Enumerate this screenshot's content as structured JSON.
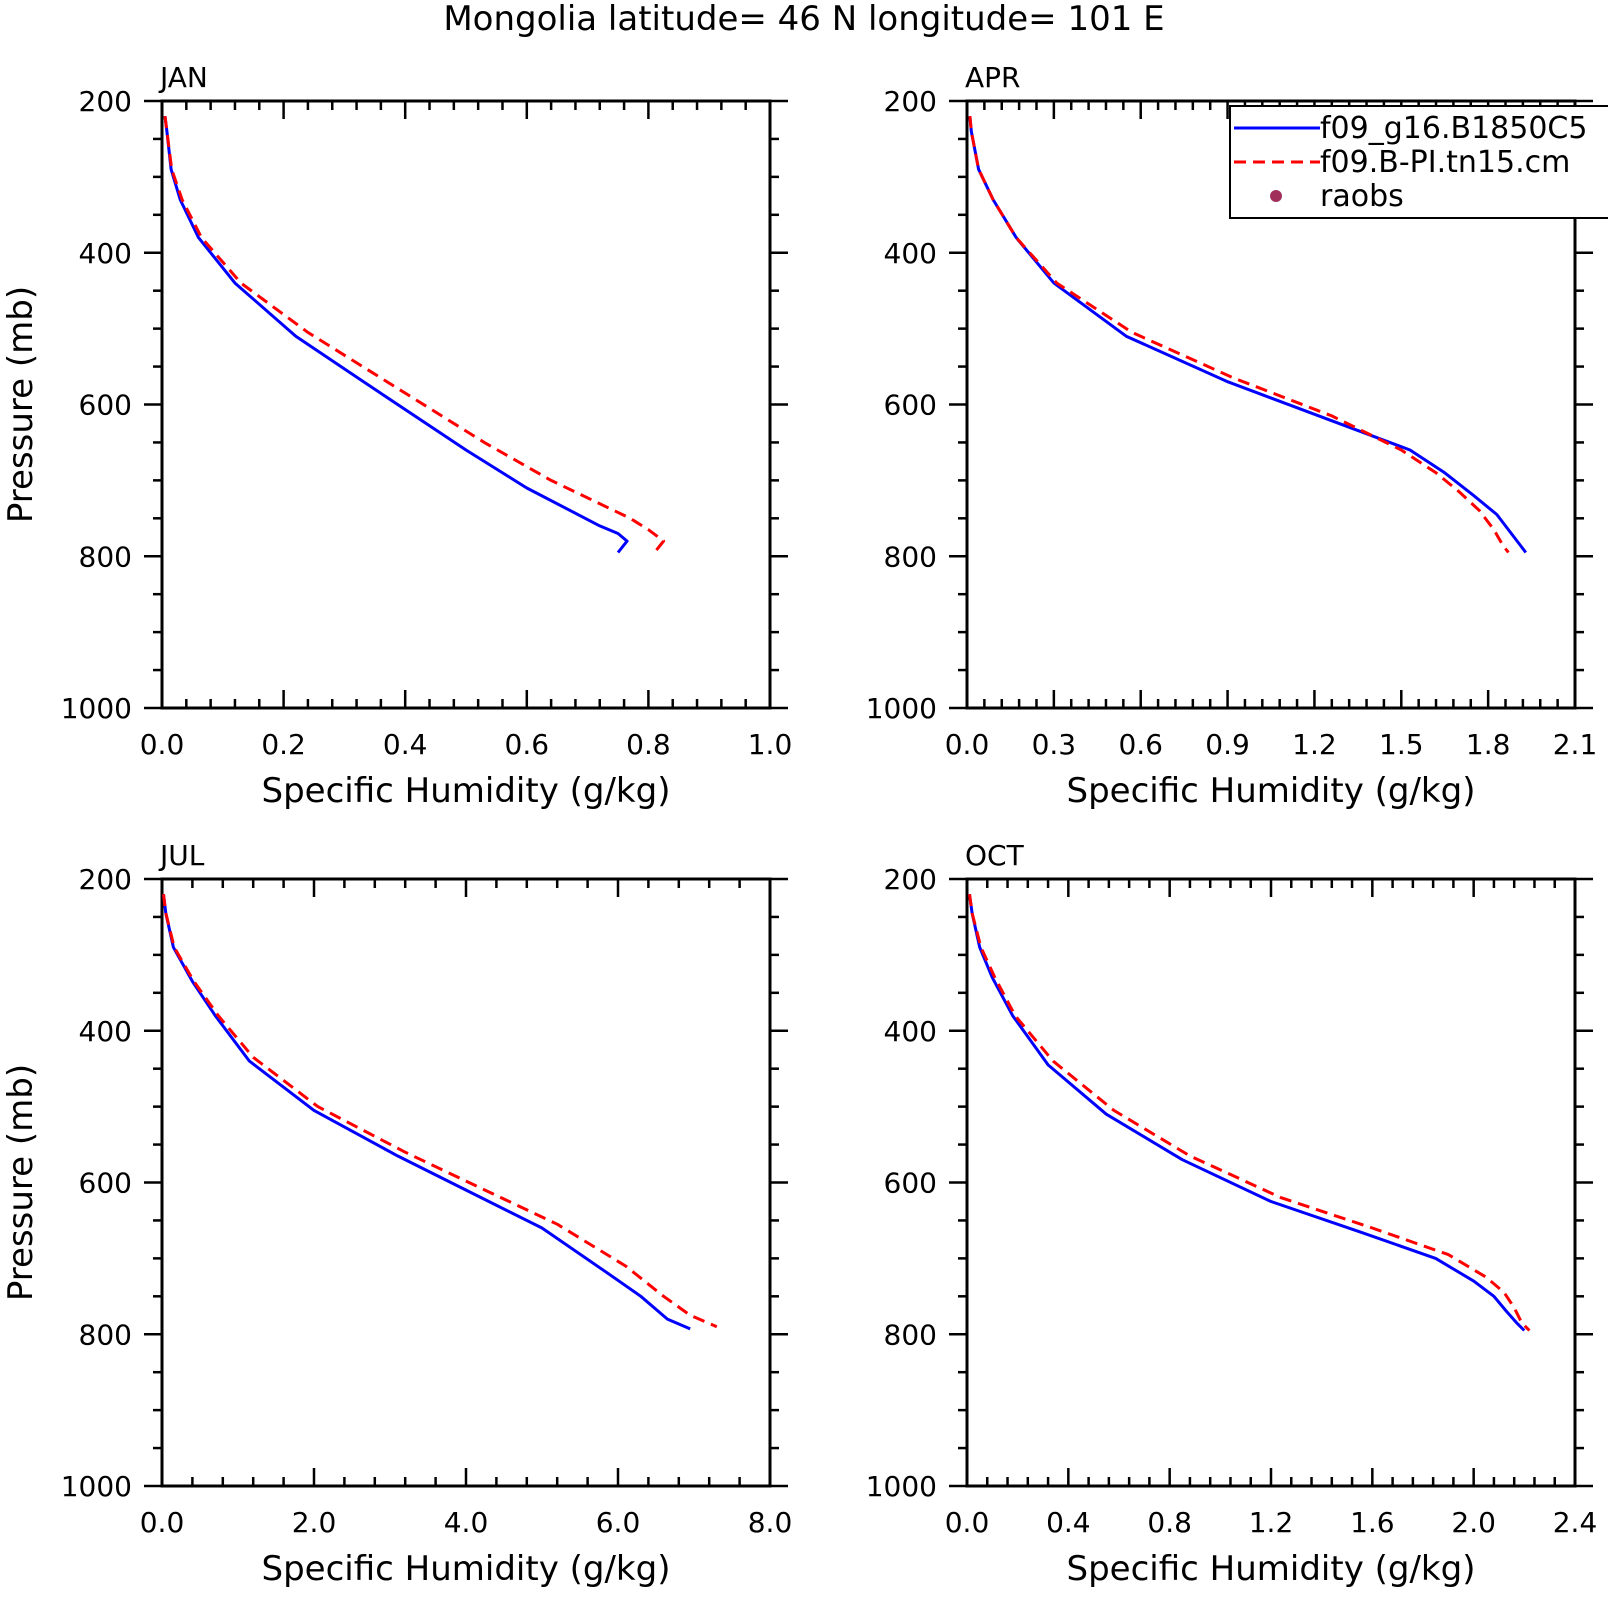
{
  "figure": {
    "title": "Mongolia  latitude= 46 N longitude= 101 E"
  },
  "legend": {
    "placement": "top-right of APR panel",
    "entries": [
      {
        "label": "f09_g16.B1850C5",
        "style": "solid",
        "color": "#0000ff"
      },
      {
        "label": "f09.B-PI.tn15.cm",
        "style": "dashed",
        "color": "#ff0000"
      },
      {
        "label": "raobs",
        "style": "dot",
        "color": "#a0305a"
      }
    ]
  },
  "chart_data": [
    {
      "type": "line",
      "panel": "JAN",
      "xlabel": "Specific Humidity (g/kg)",
      "ylabel": "Pressure (mb)",
      "xlim": [
        0,
        1.0
      ],
      "ylim": [
        1000,
        200
      ],
      "xticks": [
        "0.0",
        "0.2",
        "0.4",
        "0.6",
        "0.8",
        "1.0"
      ],
      "yticks": [
        "200",
        "400",
        "600",
        "800",
        "1000"
      ],
      "series": [
        {
          "name": "f09_g16.B1850C5",
          "color": "#0000ff",
          "dash": false,
          "x": [
            0.005,
            0.008,
            0.015,
            0.03,
            0.06,
            0.12,
            0.22,
            0.35,
            0.5,
            0.6,
            0.72,
            0.75,
            0.765,
            0.75
          ],
          "y": [
            220,
            240,
            290,
            330,
            380,
            440,
            510,
            580,
            660,
            710,
            760,
            770,
            780,
            795
          ]
        },
        {
          "name": "f09.B-PI.tn15.cm",
          "color": "#ff0000",
          "dash": true,
          "x": [
            0.005,
            0.008,
            0.016,
            0.033,
            0.065,
            0.13,
            0.24,
            0.38,
            0.53,
            0.64,
            0.77,
            0.8,
            0.825,
            0.81
          ],
          "y": [
            220,
            240,
            290,
            330,
            380,
            440,
            505,
            575,
            650,
            700,
            750,
            765,
            780,
            795
          ]
        }
      ]
    },
    {
      "type": "line",
      "panel": "APR",
      "xlabel": "Specific Humidity (g/kg)",
      "ylabel": "",
      "xlim": [
        0,
        2.1
      ],
      "ylim": [
        1000,
        200
      ],
      "xticks": [
        "0.0",
        "0.3",
        "0.6",
        "0.9",
        "1.2",
        "1.5",
        "1.8",
        "2.1"
      ],
      "yticks": [
        "200",
        "400",
        "600",
        "800",
        "1000"
      ],
      "series": [
        {
          "name": "f09_g16.B1850C5",
          "color": "#0000ff",
          "dash": false,
          "x": [
            0.01,
            0.015,
            0.04,
            0.09,
            0.17,
            0.3,
            0.55,
            0.9,
            1.25,
            1.53,
            1.65,
            1.75,
            1.83,
            1.88,
            1.91,
            1.93
          ],
          "y": [
            220,
            240,
            290,
            330,
            380,
            440,
            510,
            570,
            620,
            660,
            690,
            720,
            745,
            770,
            785,
            795
          ]
        },
        {
          "name": "f09.B-PI.tn15.cm",
          "color": "#ff0000",
          "dash": true,
          "x": [
            0.01,
            0.015,
            0.04,
            0.09,
            0.17,
            0.31,
            0.57,
            0.92,
            1.26,
            1.5,
            1.62,
            1.7,
            1.77,
            1.82,
            1.85,
            1.87
          ],
          "y": [
            220,
            240,
            290,
            330,
            380,
            440,
            505,
            565,
            615,
            660,
            690,
            715,
            740,
            765,
            785,
            795
          ]
        }
      ]
    },
    {
      "type": "line",
      "panel": "JUL",
      "xlabel": "Specific Humidity (g/kg)",
      "ylabel": "Pressure (mb)",
      "xlim": [
        0,
        8.0
      ],
      "ylim": [
        1000,
        200
      ],
      "xticks": [
        "0.0",
        "2.0",
        "4.0",
        "6.0",
        "8.0"
      ],
      "yticks": [
        "200",
        "400",
        "600",
        "800",
        "1000"
      ],
      "series": [
        {
          "name": "f09_g16.B1850C5",
          "color": "#0000ff",
          "dash": false,
          "x": [
            0.02,
            0.05,
            0.15,
            0.4,
            0.7,
            1.15,
            2.0,
            3.1,
            4.1,
            5.0,
            5.8,
            6.3,
            6.65,
            6.95
          ],
          "y": [
            220,
            245,
            290,
            335,
            380,
            440,
            505,
            565,
            615,
            660,
            715,
            750,
            780,
            793
          ]
        },
        {
          "name": "f09.B-PI.tn15.cm",
          "color": "#ff0000",
          "dash": true,
          "x": [
            0.02,
            0.05,
            0.16,
            0.42,
            0.74,
            1.2,
            2.05,
            3.2,
            4.25,
            5.2,
            6.1,
            6.6,
            6.95,
            7.3
          ],
          "y": [
            220,
            245,
            290,
            335,
            380,
            435,
            500,
            560,
            610,
            655,
            710,
            750,
            775,
            790
          ]
        }
      ]
    },
    {
      "type": "line",
      "panel": "OCT",
      "xlabel": "Specific Humidity (g/kg)",
      "ylabel": "",
      "xlim": [
        0,
        2.4
      ],
      "ylim": [
        1000,
        200
      ],
      "xticks": [
        "0.0",
        "0.4",
        "0.8",
        "1.2",
        "1.6",
        "2.0",
        "2.4"
      ],
      "yticks": [
        "200",
        "400",
        "600",
        "800",
        "1000"
      ],
      "series": [
        {
          "name": "f09_g16.B1850C5",
          "color": "#0000ff",
          "dash": false,
          "x": [
            0.01,
            0.02,
            0.05,
            0.1,
            0.18,
            0.32,
            0.55,
            0.85,
            1.2,
            1.55,
            1.85,
            2.0,
            2.08,
            2.13,
            2.17,
            2.2
          ],
          "y": [
            220,
            245,
            290,
            330,
            380,
            445,
            510,
            570,
            625,
            665,
            700,
            730,
            750,
            770,
            785,
            795
          ]
        },
        {
          "name": "f09.B-PI.tn15.cm",
          "color": "#ff0000",
          "dash": true,
          "x": [
            0.01,
            0.02,
            0.055,
            0.11,
            0.19,
            0.34,
            0.58,
            0.88,
            1.24,
            1.6,
            1.9,
            2.05,
            2.12,
            2.16,
            2.19,
            2.22
          ],
          "y": [
            220,
            245,
            290,
            330,
            380,
            440,
            505,
            565,
            620,
            660,
            695,
            725,
            745,
            765,
            785,
            795
          ]
        }
      ]
    }
  ]
}
